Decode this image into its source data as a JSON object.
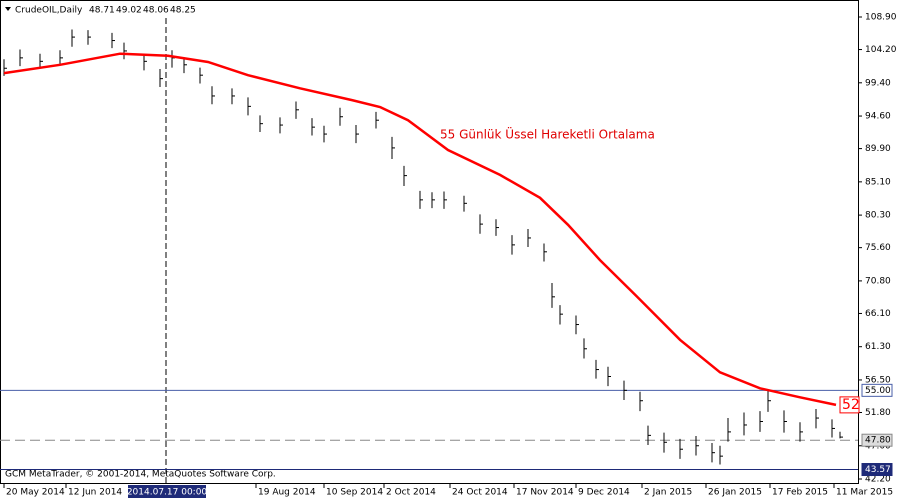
{
  "chart_data": {
    "type": "ohlc",
    "title": "CrudeOIL,Daily",
    "quote": [
      48.71,
      49.02,
      48.06,
      48.25
    ],
    "annotation": "55 Günlük Üssel Hareketli Ortalama",
    "footer": "GCM MetaTrader, © 2001-2014, MetaQuotes Software Corp.",
    "xlim": [
      0,
      215
    ],
    "ylim": [
      42.2,
      108.9
    ],
    "yticks": [
      {
        "value": 108.9,
        "label": "108.90"
      },
      {
        "value": 104.2,
        "label": "104.20"
      },
      {
        "value": 99.4,
        "label": "99.40"
      },
      {
        "value": 94.6,
        "label": "94.60"
      },
      {
        "value": 89.9,
        "label": "89.90"
      },
      {
        "value": 85.1,
        "label": "85.10"
      },
      {
        "value": 80.3,
        "label": "80.30"
      },
      {
        "value": 75.6,
        "label": "75.60"
      },
      {
        "value": 70.8,
        "label": "70.80"
      },
      {
        "value": 66.1,
        "label": "66.10"
      },
      {
        "value": 61.3,
        "label": "61.30"
      },
      {
        "value": 56.5,
        "label": "56.50"
      },
      {
        "value": 51.8,
        "label": "51.80"
      },
      {
        "value": 47,
        "label": "47.00"
      },
      {
        "value": 42.2,
        "label": "42.20"
      }
    ],
    "xticks": [
      {
        "value": 1,
        "label": "20 May 2014"
      },
      {
        "value": 16.5,
        "label": "12 Jun 2014"
      },
      {
        "value": 64,
        "label": "19 Aug 2014"
      },
      {
        "value": 81,
        "label": "10 Sep 2014"
      },
      {
        "value": 96,
        "label": "2 Oct 2014"
      },
      {
        "value": 112.5,
        "label": "24 Oct 2014"
      },
      {
        "value": 128.5,
        "label": "17 Nov 2014"
      },
      {
        "value": 144,
        "label": "9 Dec 2014"
      },
      {
        "value": 160.5,
        "label": "2 Jan 2015"
      },
      {
        "value": 176.5,
        "label": "26 Jan 2015"
      },
      {
        "value": 192.5,
        "label": "17 Feb 2015"
      },
      {
        "value": 208.5,
        "label": "11 Mar 2015"
      }
    ],
    "cursor": {
      "value": 41.5,
      "label": "2014.07.17 00:00"
    },
    "bars": {
      "color": "#000000",
      "x": [
        1,
        5,
        10,
        15,
        18,
        22,
        28,
        31,
        36,
        40,
        43,
        46,
        50,
        53,
        58,
        62,
        65,
        70,
        74,
        78,
        81,
        85,
        89,
        94,
        98,
        101,
        105,
        108,
        111,
        116,
        120,
        124,
        128,
        132,
        136,
        138,
        140,
        144,
        146,
        149,
        152,
        156,
        160,
        162,
        166,
        170,
        174,
        178,
        180,
        182,
        186,
        190,
        192,
        196,
        200,
        204,
        208,
        210
      ],
      "high": [
        102.8,
        104.2,
        103.6,
        104.1,
        107.1,
        107,
        106.6,
        105.2,
        103.5,
        101.4,
        104.1,
        103.1,
        101.6,
        98.9,
        98.6,
        97.3,
        94.7,
        94.4,
        96.7,
        94.3,
        93.2,
        95.8,
        93.3,
        95.2,
        91.6,
        87.4,
        83.8,
        83.6,
        83.7,
        83.1,
        80.4,
        79.7,
        77.4,
        78.3,
        76.2,
        70.5,
        67.3,
        65.8,
        62.5,
        59.4,
        58.4,
        56.4,
        54.8,
        49.9,
        48.9,
        48,
        48.4,
        47.4,
        47,
        51,
        51.8,
        52,
        55.2,
        52.1,
        50.4,
        52.3,
        50.8,
        49.02
      ],
      "low": [
        100.4,
        101.8,
        101.5,
        101.9,
        104.6,
        104.9,
        104.4,
        102.8,
        101.2,
        98.8,
        101.6,
        100.8,
        99.3,
        96.3,
        96.3,
        94.7,
        92.3,
        92.1,
        94.2,
        91.8,
        90.8,
        93.2,
        90.7,
        92.8,
        88.4,
        84.5,
        81.2,
        81.3,
        81.2,
        80.8,
        77.6,
        77.3,
        74.6,
        75.7,
        73.6,
        66.9,
        64.5,
        63.1,
        59.6,
        56.7,
        55.6,
        53.6,
        52,
        47.1,
        46,
        45.1,
        45.6,
        44.6,
        44.3,
        47.6,
        48.5,
        49,
        51.9,
        48.9,
        47.6,
        49.5,
        48.2,
        48.06
      ],
      "close": [
        101.5,
        103,
        102.5,
        103,
        106,
        106,
        105.5,
        104,
        102.5,
        100,
        103,
        102,
        100.5,
        97.5,
        97.5,
        96,
        93.5,
        93.3,
        95.5,
        93,
        92,
        94.5,
        92,
        94,
        90,
        86,
        82.5,
        82.5,
        82.5,
        82,
        79,
        78.5,
        76,
        77,
        75,
        68.5,
        66,
        64.5,
        61,
        58,
        57,
        55,
        53.5,
        48.5,
        47.5,
        46.5,
        47,
        46,
        45.5,
        49,
        50,
        50.5,
        53.5,
        50.5,
        49,
        51,
        49.5,
        48.25
      ]
    },
    "ema": {
      "color": "#ff0000",
      "label": "52",
      "x": [
        1,
        15,
        30,
        42,
        52,
        62,
        75,
        88,
        95,
        102,
        112,
        125,
        135,
        142,
        150,
        160,
        170,
        180,
        190,
        200,
        209
      ],
      "values": [
        100.8,
        102,
        103.6,
        103.3,
        102.4,
        100.5,
        98.6,
        96.9,
        95.9,
        94,
        89.7,
        86.1,
        82.8,
        78.9,
        73.8,
        68.1,
        62.3,
        57.6,
        55.3,
        54,
        52.9
      ]
    },
    "levels": [
      {
        "value": 55,
        "label": "55.00",
        "color": "#4a5fa8",
        "dashed": false
      },
      {
        "value": 47.8,
        "label": "47.80",
        "color": "#888888",
        "dashed": true
      },
      {
        "value": 43.57,
        "label": "43.57",
        "color": "#1e2a78",
        "dashed": false
      }
    ]
  }
}
